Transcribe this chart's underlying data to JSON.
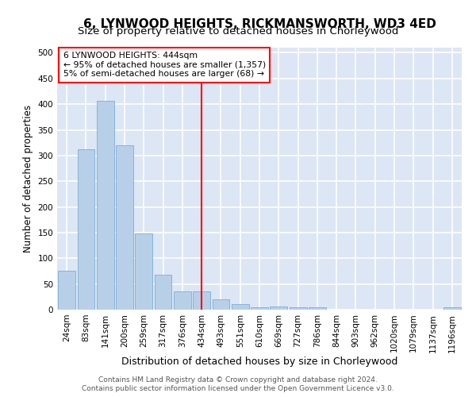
{
  "title": "6, LYNWOOD HEIGHTS, RICKMANSWORTH, WD3 4ED",
  "subtitle": "Size of property relative to detached houses in Chorleywood",
  "xlabel": "Distribution of detached houses by size in Chorleywood",
  "ylabel": "Number of detached properties",
  "footer_line1": "Contains HM Land Registry data © Crown copyright and database right 2024.",
  "footer_line2": "Contains public sector information licensed under the Open Government Licence v3.0.",
  "bar_labels": [
    "24sqm",
    "83sqm",
    "141sqm",
    "200sqm",
    "259sqm",
    "317sqm",
    "376sqm",
    "434sqm",
    "493sqm",
    "551sqm",
    "610sqm",
    "669sqm",
    "727sqm",
    "786sqm",
    "844sqm",
    "903sqm",
    "962sqm",
    "1020sqm",
    "1079sqm",
    "1137sqm",
    "1196sqm"
  ],
  "bar_values": [
    75,
    312,
    407,
    320,
    148,
    68,
    36,
    36,
    20,
    11,
    5,
    6,
    5,
    4,
    0,
    0,
    0,
    0,
    0,
    0,
    5
  ],
  "bar_color": "#b8cfe8",
  "bar_edge_color": "#7aaed6",
  "vline_x": 7,
  "vline_color": "red",
  "annotation_title": "6 LYNWOOD HEIGHTS: 444sqm",
  "annotation_line1": "← 95% of detached houses are smaller (1,357)",
  "annotation_line2": "5% of semi-detached houses are larger (68) →",
  "annotation_box_color": "white",
  "annotation_box_edge_color": "red",
  "ylim": [
    0,
    510
  ],
  "yticks": [
    0,
    50,
    100,
    150,
    200,
    250,
    300,
    350,
    400,
    450,
    500
  ],
  "background_color": "#dce6f5",
  "grid_color": "white",
  "title_fontsize": 11,
  "subtitle_fontsize": 9.5,
  "ylabel_fontsize": 8.5,
  "xlabel_fontsize": 9,
  "tick_fontsize": 7.5,
  "footer_fontsize": 6.5
}
